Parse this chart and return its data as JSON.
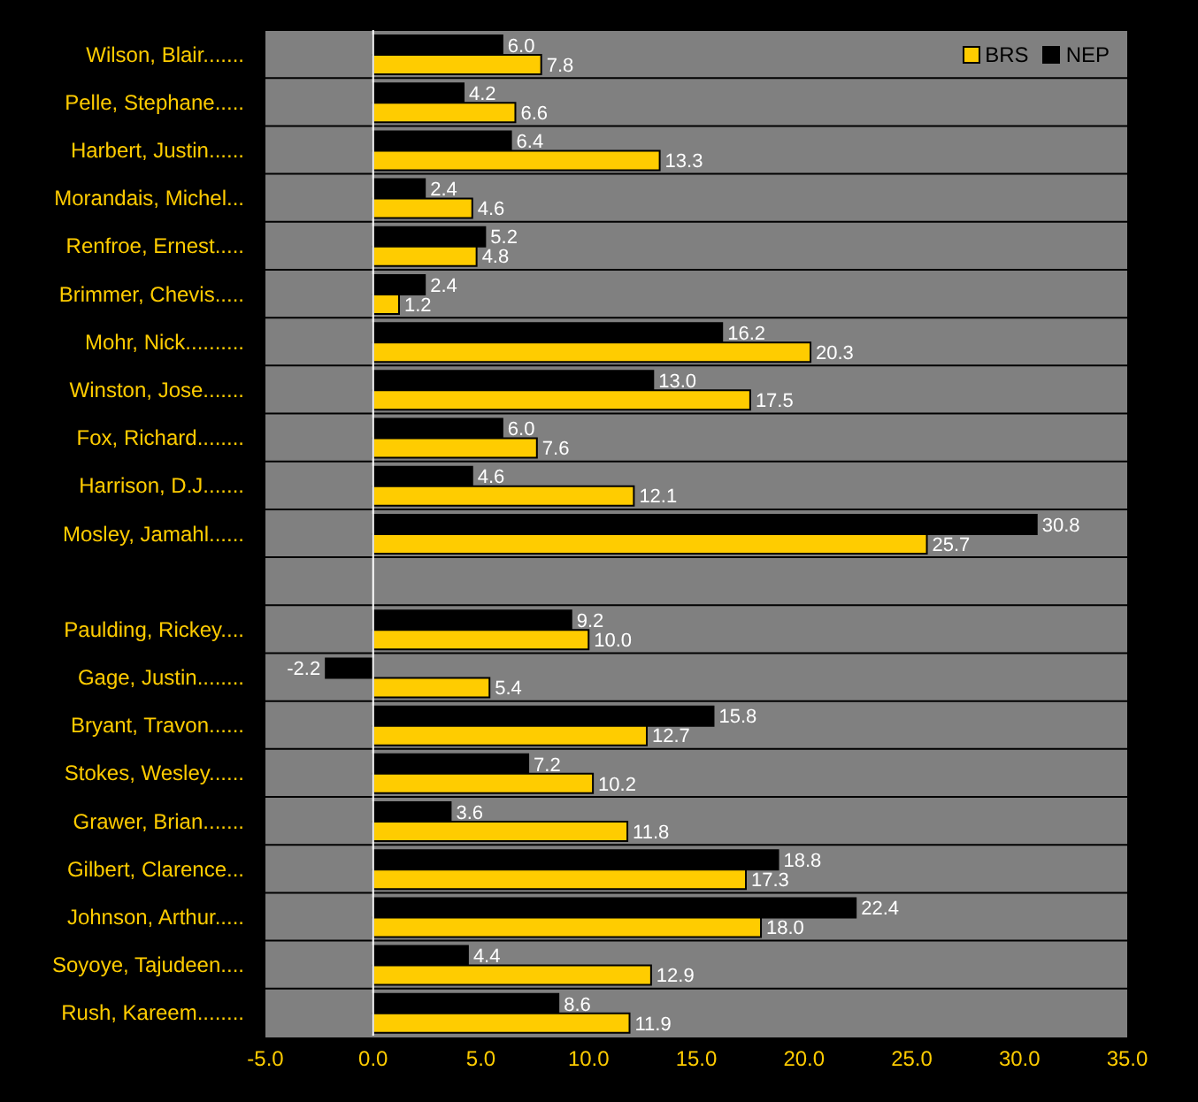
{
  "chart_data": {
    "type": "bar",
    "orientation": "horizontal",
    "categories": [
      "Wilson, Blair.......",
      "Pelle, Stephane.....",
      "Harbert, Justin......",
      "Morandais, Michel...",
      "Renfroe, Ernest.....",
      "Brimmer, Chevis.....",
      "Mohr, Nick..........",
      "Winston, Jose.......",
      "Fox, Richard........",
      "Harrison, D.J.......",
      "Mosley, Jamahl......",
      null,
      "Paulding, Rickey....",
      "Gage, Justin........",
      "Bryant, Travon......",
      "Stokes, Wesley......",
      "Grawer, Brian.......",
      "Gilbert, Clarence...",
      "Johnson, Arthur.....",
      "Soyoye, Tajudeen....",
      "Rush, Kareem........"
    ],
    "series": [
      {
        "name": "BRS",
        "color": "#ffcc00",
        "values": [
          7.8,
          6.6,
          13.3,
          4.6,
          4.8,
          1.2,
          20.3,
          17.5,
          7.6,
          12.1,
          25.7,
          null,
          10.0,
          5.4,
          12.7,
          10.2,
          11.8,
          17.3,
          18.0,
          12.9,
          11.9
        ],
        "value_labels": [
          "7.8",
          "6.6",
          "13.3",
          "4.6",
          "4.8",
          "1.2",
          "20.3",
          "17.5",
          "7.6",
          "12.1",
          "25.7",
          null,
          "10.0",
          "5.4",
          "12.7",
          "10.2",
          "11.8",
          "17.3",
          "18.0",
          "12.9",
          "11.9"
        ]
      },
      {
        "name": "NEP",
        "color": "#000000",
        "values": [
          6.0,
          4.2,
          6.4,
          2.4,
          5.2,
          2.4,
          16.2,
          13.0,
          6.0,
          4.6,
          30.8,
          null,
          9.2,
          -2.2,
          15.8,
          7.2,
          3.6,
          18.8,
          22.4,
          4.4,
          8.6
        ],
        "value_labels": [
          "6.0",
          "4.2",
          "6.4",
          "2.4",
          "5.2",
          "2.4",
          "16.2",
          "13.0",
          "6.0",
          "4.6",
          "30.8",
          null,
          "9.2",
          "-2.2",
          "15.8",
          "7.2",
          "3.6",
          "18.8",
          "22.4",
          "4.4",
          "8.6"
        ]
      }
    ],
    "xlim": [
      -5,
      35
    ],
    "xticks": [
      {
        "value": -5,
        "label": "-5.0"
      },
      {
        "value": 0,
        "label": "0.0"
      },
      {
        "value": 5,
        "label": "5.0"
      },
      {
        "value": 10,
        "label": "10.0"
      },
      {
        "value": 15,
        "label": "15.0"
      },
      {
        "value": 20,
        "label": "20.0"
      },
      {
        "value": 25,
        "label": "25.0"
      },
      {
        "value": 30,
        "label": "30.0"
      },
      {
        "value": 35,
        "label": "35.0"
      }
    ],
    "ref_lines": [
      {
        "axis": "x",
        "value": 0,
        "color": "#ffffff"
      }
    ],
    "grid": "y",
    "legend": "top right"
  }
}
